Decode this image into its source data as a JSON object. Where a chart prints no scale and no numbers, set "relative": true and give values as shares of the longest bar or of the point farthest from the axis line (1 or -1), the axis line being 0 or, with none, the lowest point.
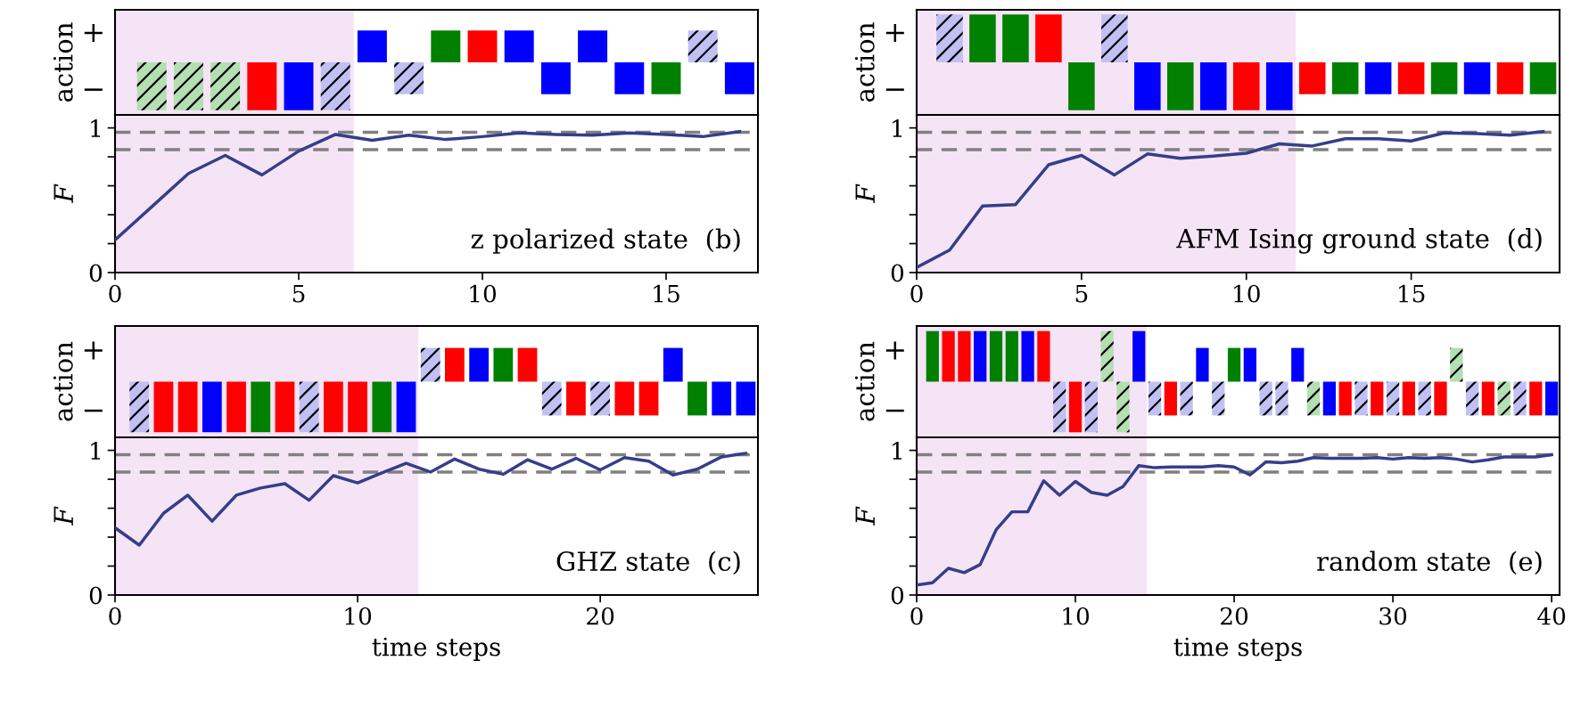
{
  "chart_data": [
    {
      "type": "bar",
      "ylabel": "action",
      "x": [
        1,
        2,
        3,
        4,
        5,
        6,
        7,
        8,
        9,
        10,
        11,
        12,
        13,
        14,
        15,
        16,
        17
      ],
      "values": [
        -1,
        -1,
        -1,
        -1,
        -1,
        -1,
        0.667,
        -0.667,
        0.667,
        0.667,
        0.667,
        -0.667,
        0.667,
        -0.667,
        -0.667,
        0.667,
        -0.667
      ],
      "colors": [
        "#b3dfb3",
        "#b3dfb3",
        "#b3dfb3",
        "#ff0000",
        "#0000ff",
        "#c0c0f5",
        "#0000ff",
        "#c0c0f5",
        "#008000",
        "#ff0000",
        "#0000ff",
        "#0000ff",
        "#0000ff",
        "#0000ff",
        "#008000",
        "#c0c0f5",
        "#0000ff"
      ],
      "xlim": [
        0,
        17.5
      ],
      "relative": true,
      "annotations": [
        "+",
        "−"
      ],
      "bands": [
        {
          "axis": "x",
          "from": 0,
          "to": 6.5,
          "color": "#f5e4f5"
        }
      ]
    },
    {
      "type": "line",
      "ylabel": "F",
      "x": [
        0,
        1,
        2,
        3,
        4,
        5,
        6,
        7,
        8,
        9,
        10,
        11,
        12,
        13,
        14,
        15,
        16,
        17
      ],
      "series": [
        {
          "color": "#353e8a",
          "values": [
            0.225,
            0.455,
            0.685,
            0.81,
            0.675,
            0.84,
            0.955,
            0.915,
            0.95,
            0.92,
            0.94,
            0.965,
            0.955,
            0.95,
            0.965,
            0.955,
            0.94,
            0.975
          ]
        }
      ],
      "xlim": [
        0,
        17.5
      ],
      "xticks": [
        0,
        5,
        10,
        15
      ],
      "ylim": [
        0,
        1.09
      ],
      "yticks": [
        0,
        {
          "value": 0.2,
          "label": null
        },
        {
          "value": 0.4,
          "label": null
        },
        {
          "value": 0.6,
          "label": null
        },
        {
          "value": 0.8,
          "label": null
        },
        1
      ],
      "ref_lines": [
        {
          "axis": "y",
          "value": 0.97,
          "color": "#808080",
          "line_style": "dashed"
        },
        {
          "axis": "y",
          "value": 0.85,
          "color": "#808080",
          "line_style": "dashed"
        }
      ],
      "bands": [
        {
          "axis": "x",
          "from": 0,
          "to": 6.5,
          "color": "#f5e4f5"
        }
      ],
      "annotations": [
        "z polarized state  (b)"
      ]
    },
    {
      "type": "bar",
      "ylabel": "action",
      "x": [
        1,
        2,
        3,
        4,
        5,
        6,
        7,
        8,
        9,
        10,
        11,
        12,
        13,
        14,
        15,
        16,
        17,
        18,
        19
      ],
      "values": [
        1,
        1,
        1,
        1,
        -1,
        1,
        -1,
        -1,
        -1,
        -1,
        -1,
        -0.667,
        -0.667,
        -0.667,
        -0.667,
        -0.667,
        -0.667,
        -0.667,
        -0.667
      ],
      "colors": [
        "#c0c0f5",
        "#008000",
        "#008000",
        "#ff0000",
        "#008000",
        "#c0c0f5",
        "#0000ff",
        "#008000",
        "#0000ff",
        "#ff0000",
        "#0000ff",
        "#ff0000",
        "#008000",
        "#0000ff",
        "#ff0000",
        "#008000",
        "#0000ff",
        "#ff0000",
        "#008000"
      ],
      "xlim": [
        0,
        19.5
      ],
      "relative": true,
      "annotations": [
        "+",
        "−"
      ],
      "bands": [
        {
          "axis": "x",
          "from": 0,
          "to": 11.5,
          "color": "#f5e4f5"
        }
      ]
    },
    {
      "type": "line",
      "ylabel": "F",
      "x": [
        0,
        1,
        2,
        3,
        4,
        5,
        6,
        7,
        8,
        9,
        10,
        11,
        12,
        13,
        14,
        15,
        16,
        17,
        18,
        19
      ],
      "series": [
        {
          "color": "#353e8a",
          "values": [
            0.035,
            0.155,
            0.46,
            0.47,
            0.745,
            0.81,
            0.675,
            0.82,
            0.79,
            0.805,
            0.825,
            0.89,
            0.875,
            0.925,
            0.925,
            0.91,
            0.965,
            0.96,
            0.95,
            0.975
          ]
        }
      ],
      "xlim": [
        0,
        19.5
      ],
      "xticks": [
        0,
        5,
        10,
        15
      ],
      "ylim": [
        0,
        1.09
      ],
      "yticks": [
        0,
        {
          "value": 0.2,
          "label": null
        },
        {
          "value": 0.4,
          "label": null
        },
        {
          "value": 0.6,
          "label": null
        },
        {
          "value": 0.8,
          "label": null
        },
        1
      ],
      "ref_lines": [
        {
          "axis": "y",
          "value": 0.97,
          "color": "#808080",
          "line_style": "dashed"
        },
        {
          "axis": "y",
          "value": 0.85,
          "color": "#808080",
          "line_style": "dashed"
        }
      ],
      "bands": [
        {
          "axis": "x",
          "from": 0,
          "to": 11.5,
          "color": "#f5e4f5"
        }
      ],
      "annotations": [
        "AFM Ising ground state  (d)"
      ]
    },
    {
      "type": "bar",
      "ylabel": "action",
      "x": [
        1,
        2,
        3,
        4,
        5,
        6,
        7,
        8,
        9,
        10,
        11,
        12,
        13,
        14,
        15,
        16,
        17,
        18,
        19,
        20,
        21,
        22,
        23,
        24,
        25,
        26
      ],
      "values": [
        -1,
        -1,
        -1,
        -1,
        -1,
        -1,
        -1,
        -1,
        -1,
        -1,
        -1,
        -1,
        0.667,
        0.667,
        0.667,
        0.667,
        0.667,
        -0.667,
        -0.667,
        -0.667,
        -0.667,
        -0.667,
        0.667,
        -0.667,
        -0.667,
        -0.667
      ],
      "colors": [
        "#c0c0f5",
        "#ff0000",
        "#ff0000",
        "#0000ff",
        "#ff0000",
        "#008000",
        "#ff0000",
        "#c0c0f5",
        "#ff0000",
        "#ff0000",
        "#008000",
        "#0000ff",
        "#c0c0f5",
        "#ff0000",
        "#0000ff",
        "#008000",
        "#ff0000",
        "#c0c0f5",
        "#ff0000",
        "#c0c0f5",
        "#ff0000",
        "#ff0000",
        "#0000ff",
        "#008000",
        "#0000ff",
        "#0000ff"
      ],
      "xlim": [
        0,
        26.5
      ],
      "relative": true,
      "annotations": [
        "+",
        "−"
      ],
      "bands": [
        {
          "axis": "x",
          "from": 0,
          "to": 12.5,
          "color": "#f5e4f5"
        }
      ]
    },
    {
      "type": "line",
      "ylabel": "F",
      "xlabel": "time steps",
      "x": [
        0,
        1,
        2,
        3,
        4,
        5,
        6,
        7,
        8,
        9,
        10,
        11,
        12,
        13,
        14,
        15,
        16,
        17,
        18,
        19,
        20,
        21,
        22,
        23,
        24,
        25,
        26
      ],
      "series": [
        {
          "color": "#353e8a",
          "values": [
            0.465,
            0.345,
            0.565,
            0.69,
            0.51,
            0.69,
            0.74,
            0.77,
            0.655,
            0.825,
            0.775,
            0.845,
            0.91,
            0.85,
            0.94,
            0.87,
            0.835,
            0.935,
            0.87,
            0.945,
            0.865,
            0.95,
            0.925,
            0.83,
            0.87,
            0.955,
            0.98
          ]
        }
      ],
      "xlim": [
        0,
        26.5
      ],
      "xticks": [
        0,
        10,
        20
      ],
      "ylim": [
        0,
        1.09
      ],
      "yticks": [
        0,
        {
          "value": 0.2,
          "label": null
        },
        {
          "value": 0.4,
          "label": null
        },
        {
          "value": 0.6,
          "label": null
        },
        {
          "value": 0.8,
          "label": null
        },
        1
      ],
      "ref_lines": [
        {
          "axis": "y",
          "value": 0.97,
          "color": "#808080",
          "line_style": "dashed"
        },
        {
          "axis": "y",
          "value": 0.85,
          "color": "#808080",
          "line_style": "dashed"
        }
      ],
      "bands": [
        {
          "axis": "x",
          "from": 0,
          "to": 12.5,
          "color": "#f5e4f5"
        }
      ],
      "annotations": [
        "GHZ state  (c)"
      ]
    },
    {
      "type": "bar",
      "ylabel": "action",
      "x": [
        1,
        2,
        3,
        4,
        5,
        6,
        7,
        8,
        9,
        10,
        11,
        12,
        13,
        14,
        15,
        16,
        17,
        18,
        19,
        20,
        21,
        22,
        23,
        24,
        25,
        26,
        27,
        28,
        29,
        30,
        31,
        32,
        33,
        34,
        35,
        36,
        37,
        38,
        39,
        40
      ],
      "values": [
        1,
        1,
        1,
        1,
        1,
        1,
        1,
        1,
        -1,
        -1,
        -1,
        1,
        -1,
        1,
        -0.667,
        -0.667,
        -0.667,
        0.667,
        -0.667,
        0.667,
        0.667,
        -0.667,
        -0.667,
        0.667,
        -0.667,
        -0.667,
        -0.667,
        -0.667,
        -0.667,
        -0.667,
        -0.667,
        -0.667,
        -0.667,
        0.667,
        -0.667,
        -0.667,
        -0.667,
        -0.667,
        -0.667,
        -0.667
      ],
      "colors": [
        "#008000",
        "#ff0000",
        "#ff0000",
        "#0000ff",
        "#008000",
        "#008000",
        "#0000ff",
        "#ff0000",
        "#c0c0f5",
        "#ff0000",
        "#c0c0f5",
        "#b3dfb3",
        "#b3dfb3",
        "#0000ff",
        "#c0c0f5",
        "#ff0000",
        "#c0c0f5",
        "#0000ff",
        "#c0c0f5",
        "#008000",
        "#0000ff",
        "#c0c0f5",
        "#c0c0f5",
        "#0000ff",
        "#b3dfb3",
        "#0000ff",
        "#ff0000",
        "#c0c0f5",
        "#ff0000",
        "#c0c0f5",
        "#ff0000",
        "#c0c0f5",
        "#ff0000",
        "#b3dfb3",
        "#c0c0f5",
        "#ff0000",
        "#b3dfb3",
        "#c0c0f5",
        "#ff0000",
        "#0000ff"
      ],
      "xlim": [
        0,
        40.5
      ],
      "relative": true,
      "annotations": [
        "+",
        "−"
      ],
      "bands": [
        {
          "axis": "x",
          "from": 0,
          "to": 14.5,
          "color": "#f5e4f5"
        }
      ]
    },
    {
      "type": "line",
      "ylabel": "F",
      "xlabel": "time steps",
      "x": [
        0,
        1,
        2,
        3,
        4,
        5,
        6,
        7,
        8,
        9,
        10,
        11,
        12,
        13,
        14,
        15,
        16,
        17,
        18,
        19,
        20,
        21,
        22,
        23,
        24,
        25,
        26,
        27,
        28,
        29,
        30,
        31,
        32,
        33,
        34,
        35,
        36,
        37,
        38,
        39,
        40
      ],
      "series": [
        {
          "color": "#353e8a",
          "values": [
            0.07,
            0.085,
            0.185,
            0.155,
            0.21,
            0.45,
            0.575,
            0.575,
            0.79,
            0.69,
            0.785,
            0.71,
            0.69,
            0.75,
            0.895,
            0.88,
            0.885,
            0.885,
            0.885,
            0.895,
            0.885,
            0.83,
            0.92,
            0.915,
            0.925,
            0.95,
            0.945,
            0.945,
            0.945,
            0.95,
            0.94,
            0.95,
            0.945,
            0.95,
            0.94,
            0.92,
            0.935,
            0.955,
            0.955,
            0.955,
            0.97
          ]
        }
      ],
      "xlim": [
        0,
        40.5
      ],
      "xticks": [
        0,
        10,
        20,
        30,
        40
      ],
      "ylim": [
        0,
        1.09
      ],
      "yticks": [
        0,
        {
          "value": 0.2,
          "label": null
        },
        {
          "value": 0.4,
          "label": null
        },
        {
          "value": 0.6,
          "label": null
        },
        {
          "value": 0.8,
          "label": null
        },
        1
      ],
      "ref_lines": [
        {
          "axis": "y",
          "value": 0.97,
          "color": "#808080",
          "line_style": "dashed"
        },
        {
          "axis": "y",
          "value": 0.85,
          "color": "#808080",
          "line_style": "dashed"
        }
      ],
      "bands": [
        {
          "axis": "x",
          "from": 0,
          "to": 14.5,
          "color": "#f5e4f5"
        }
      ],
      "annotations": [
        "random state  (e)"
      ]
    }
  ]
}
